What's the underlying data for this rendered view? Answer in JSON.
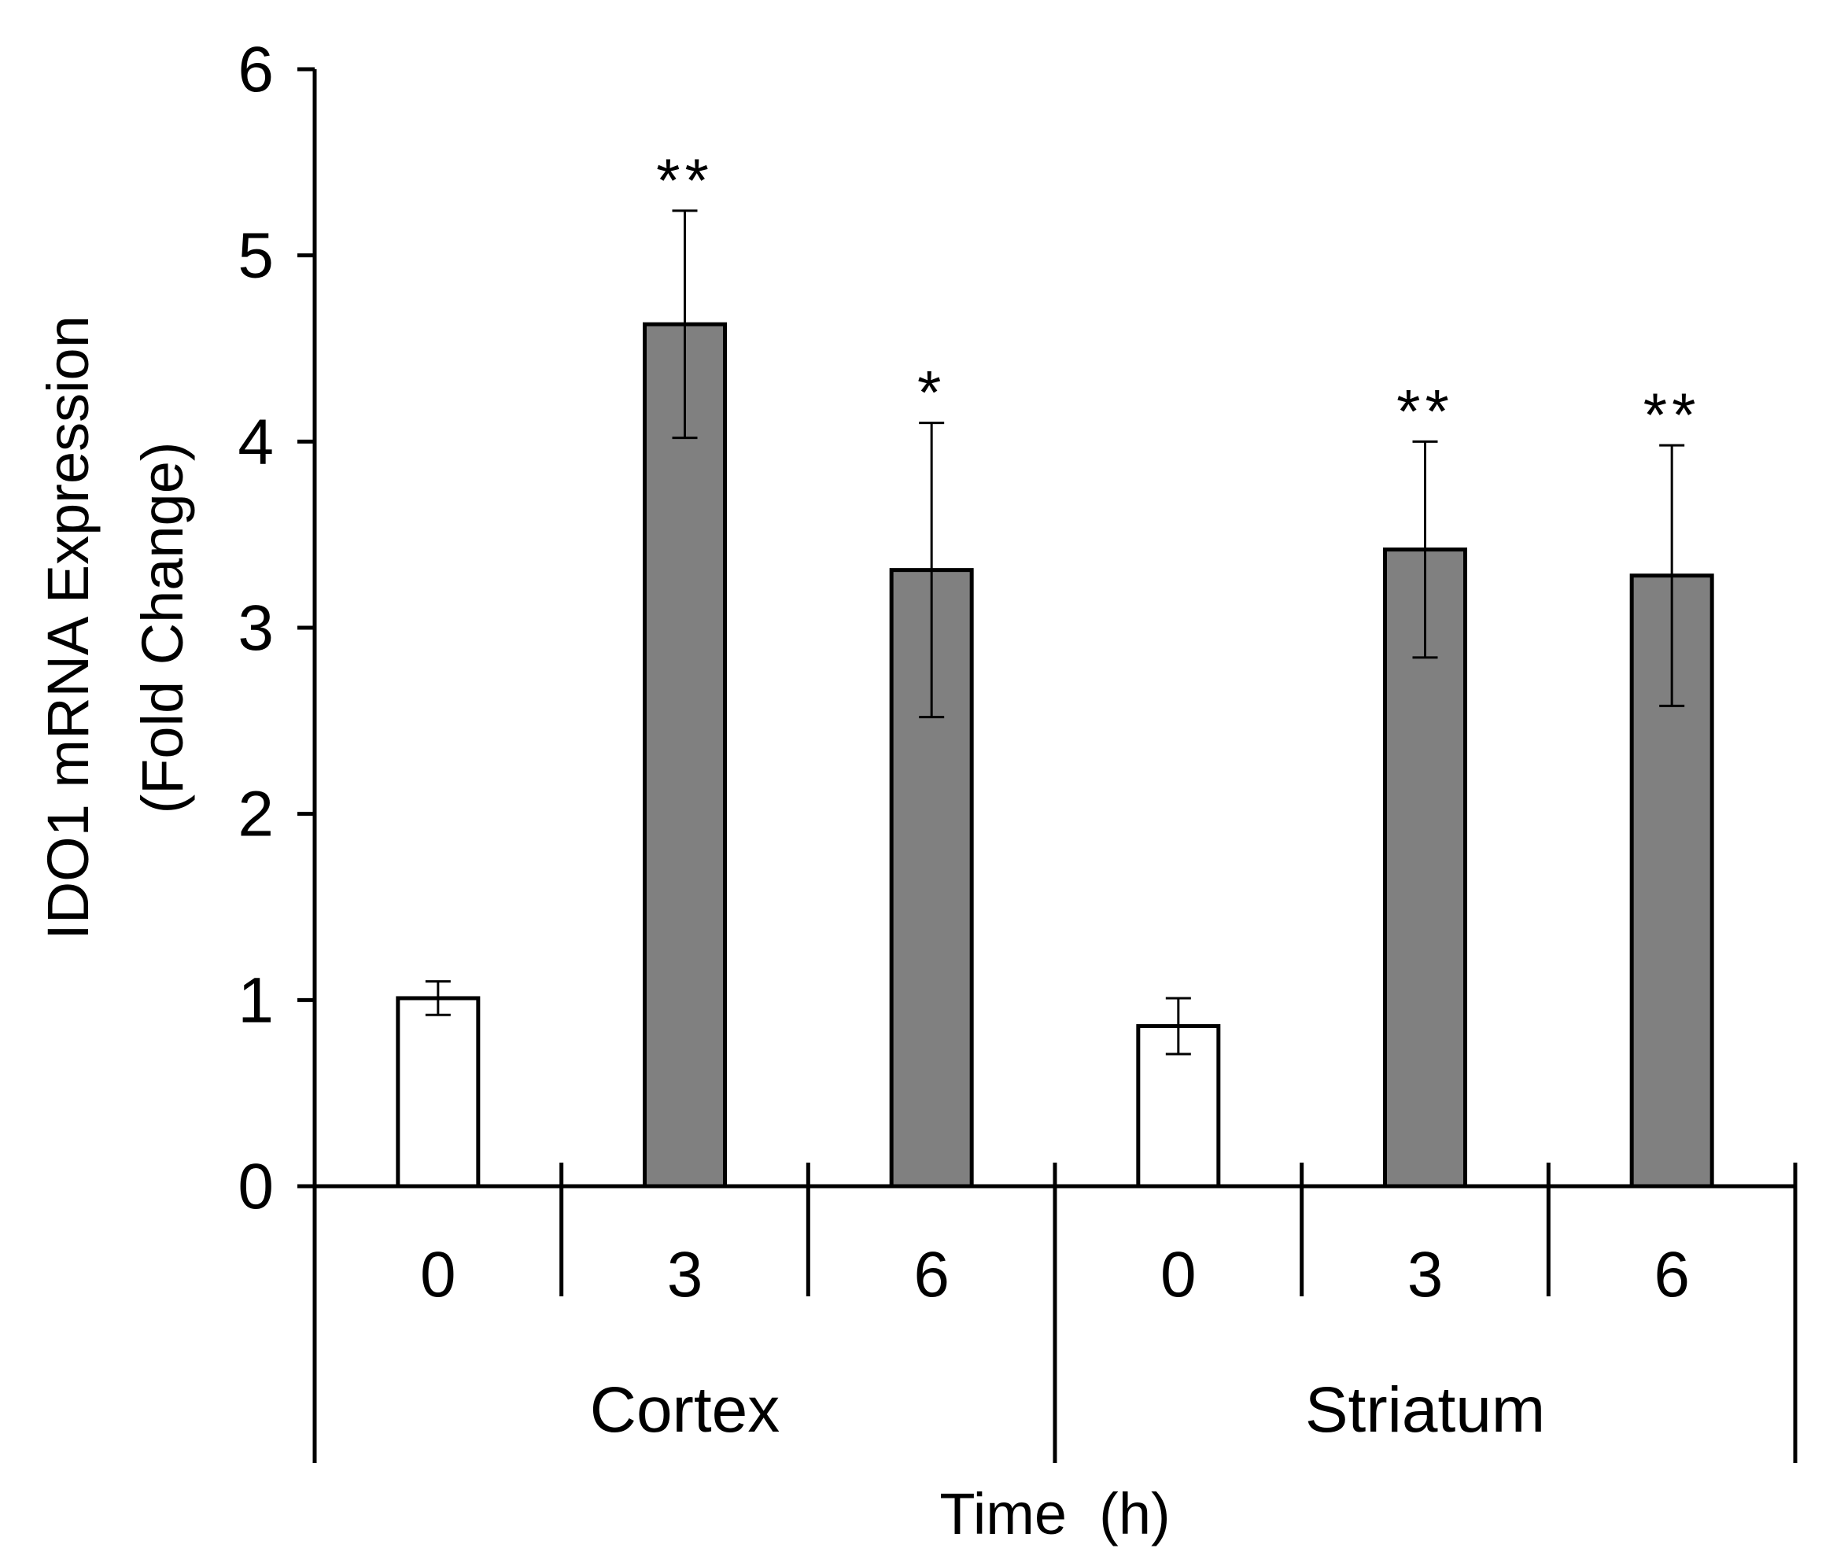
{
  "chart_data": {
    "type": "bar",
    "title": "",
    "ylabel_line1": "IDO1 mRNA Expression",
    "ylabel_line2": "(Fold Change)",
    "xlabel": "Time  (h)",
    "ylim": [
      0,
      6
    ],
    "yticks": [
      "0",
      "1",
      "2",
      "3",
      "4",
      "5",
      "6"
    ],
    "colors": {
      "control": "#ffffff",
      "treated": "#808080",
      "stroke": "#000000"
    },
    "groups": [
      {
        "name": "Cortex",
        "bars": [
          {
            "category": "0",
            "value": 1.01,
            "error": 0.09,
            "significance": "",
            "kind": "control"
          },
          {
            "category": "3",
            "value": 4.63,
            "error": 0.61,
            "significance": "**",
            "kind": "treated"
          },
          {
            "category": "6",
            "value": 3.31,
            "error": 0.79,
            "significance": "*",
            "kind": "treated"
          }
        ]
      },
      {
        "name": "Striatum",
        "bars": [
          {
            "category": "0",
            "value": 0.86,
            "error": 0.15,
            "significance": "",
            "kind": "control"
          },
          {
            "category": "3",
            "value": 3.42,
            "error": 0.58,
            "significance": "**",
            "kind": "treated"
          },
          {
            "category": "6",
            "value": 3.28,
            "error": 0.7,
            "significance": "**",
            "kind": "treated"
          }
        ]
      }
    ]
  }
}
